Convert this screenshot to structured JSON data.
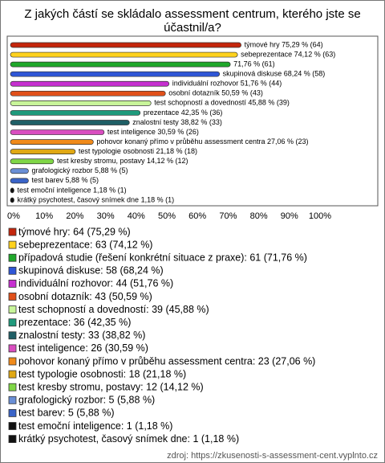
{
  "chart_data": {
    "type": "bar",
    "orientation": "horizontal",
    "title": "Z jakých částí se skládalo assessment centrum, kterého jste se účastnil/a?",
    "values": [
      75.29,
      74.12,
      71.76,
      68.24,
      51.76,
      50.59,
      45.88,
      42.35,
      38.82,
      30.59,
      27.06,
      21.18,
      14.12,
      5.88,
      5.88,
      1.18,
      1.18
    ],
    "value_labels": [
      "týmové hry 75,29 % (64)",
      "sebeprezentace 74,12 % (63)",
      "71,76 % (61)",
      "skupinová diskuse 68,24 % (58)",
      "individuální rozhovor 51,76 % (44)",
      "osobní dotazník 50,59 % (43)",
      "test schopností a dovedností 45,88 % (39)",
      "prezentace 42,35 % (36)",
      "znalostní testy 38,82 % (33)",
      "test inteligence 30,59 % (26)",
      "pohovor konaný přímo v průběhu assessment centra 27,06 % (23)",
      "test typologie osobnosti 21,18 % (18)",
      "test kresby stromu, postavy 14,12 % (12)",
      "grafologický rozbor 5,88 % (5)",
      "test barev 5,88 % (5)",
      "test emoční inteligence 1,18 % (1)",
      "krátký psychotest, časový snímek dne 1,18 % (1)"
    ],
    "legend_labels": [
      "týmové hry: 64 (75,29 %)",
      "sebeprezentace: 63 (74,12 %)",
      "případová studie (řešení konkrétní situace z praxe): 61 (71,76 %)",
      "skupinová diskuse: 58 (68,24 %)",
      "individuální rozhovor: 44 (51,76 %)",
      "osobní dotazník: 43 (50,59 %)",
      "test schopností a dovedností: 39 (45,88 %)",
      "prezentace: 36 (42,35 %)",
      "znalostní testy: 33 (38,82 %)",
      "test inteligence: 26 (30,59 %)",
      "pohovor konaný přímo v průběhu assessment centra: 23 (27,06 %)",
      "test typologie osobnosti: 18 (21,18 %)",
      "test kresby stromu, postavy: 12 (14,12 %)",
      "grafologický rozbor: 5 (5,88 %)",
      "test barev: 5 (5,88 %)",
      "test emoční inteligence: 1 (1,18 %)",
      "krátký psychotest, časový snímek dne: 1 (1,18 %)"
    ],
    "colors": [
      "#c4260c",
      "#ffd21e",
      "#1fa82a",
      "#2f56d6",
      "#c62fd0",
      "#e0501a",
      "#c8f59a",
      "#1f9a7c",
      "#1f5f66",
      "#d94ec0",
      "#f08a1a",
      "#e0a814",
      "#7fd646",
      "#6a8fd6",
      "#3a64c8",
      "#111111",
      "#111111"
    ],
    "xlim": [
      0,
      100
    ],
    "xticks": [
      {
        "value": 0,
        "label": "0%"
      },
      {
        "value": 10,
        "label": "10%"
      },
      {
        "value": 20,
        "label": "20%"
      },
      {
        "value": 30,
        "label": "30%"
      },
      {
        "value": 40,
        "label": "40%"
      },
      {
        "value": 50,
        "label": "50%"
      },
      {
        "value": 60,
        "label": "60%"
      },
      {
        "value": 70,
        "label": "70%"
      },
      {
        "value": 80,
        "label": "80%"
      },
      {
        "value": 90,
        "label": "90%"
      },
      {
        "value": 100,
        "label": "100%"
      }
    ],
    "grid": false,
    "source": "zdroj: https://zkusenosti-s-assessment-cent.vyplnto.cz"
  }
}
